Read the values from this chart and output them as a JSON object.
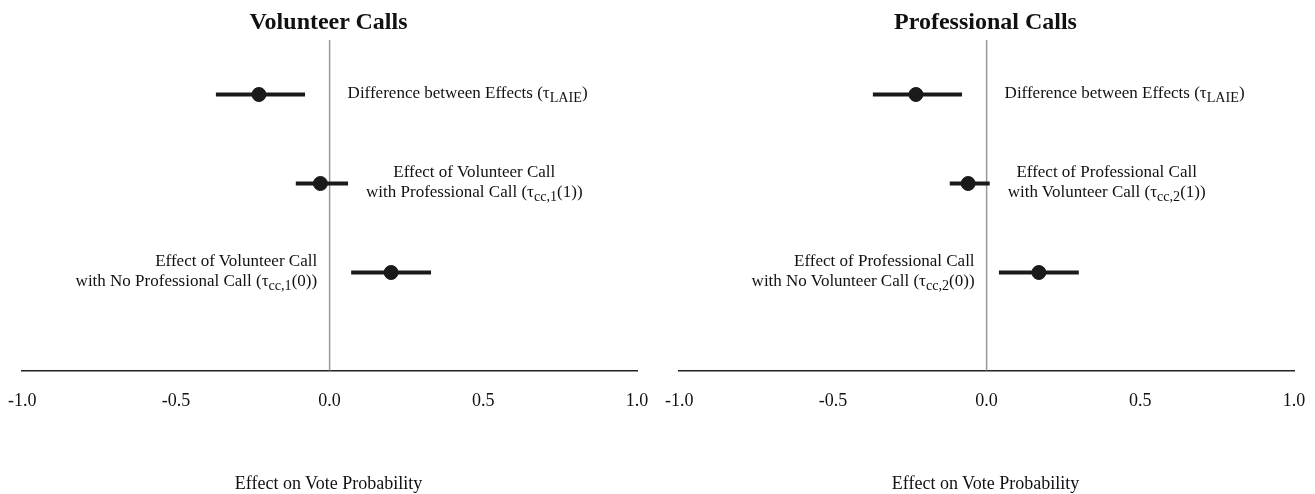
{
  "chart_data": [
    {
      "type": "scatter",
      "title": "Volunteer Calls",
      "xlabel": "Effect on Vote Probability",
      "orientation": "horizontal",
      "categories": [
        null,
        null,
        null
      ],
      "series": [
        {
          "color": "#1a1a1a",
          "values": [
            -0.23,
            -0.03,
            0.2
          ],
          "errors": [
            [
              -0.37,
              -0.08
            ],
            [
              -0.11,
              0.06
            ],
            [
              0.07,
              0.33
            ]
          ]
        }
      ],
      "xlim": [
        -1,
        1
      ],
      "xticks": [
        {
          "value": -1,
          "label": "-1.0"
        },
        {
          "value": -0.5,
          "label": "-0.5"
        },
        {
          "value": 0,
          "label": "0.0"
        },
        {
          "value": 0.5,
          "label": "0.5"
        },
        {
          "value": 1,
          "label": "1.0"
        }
      ],
      "ref_lines": [
        {
          "axis": "x",
          "value": 0,
          "color": "#999999"
        }
      ],
      "annotations": [
        "Difference between Effects (τ$_{LAIE}$)",
        "Effect of Volunteer Call\nwith Professional Call (τ$_{cc,1}$(1))",
        "Effect of Volunteer Call\nwith No Professional Call (τ$_{cc,1}$(0))"
      ],
      "marker": "circle",
      "grid": false,
      "legend": false,
      "tick_labels": "x"
    },
    {
      "type": "scatter",
      "title": "Professional Calls",
      "xlabel": "Effect on Vote Probability",
      "orientation": "horizontal",
      "categories": [
        null,
        null,
        null
      ],
      "series": [
        {
          "color": "#1a1a1a",
          "values": [
            -0.23,
            -0.06,
            0.17
          ],
          "errors": [
            [
              -0.37,
              -0.08
            ],
            [
              -0.12,
              0.01
            ],
            [
              0.04,
              0.3
            ]
          ]
        }
      ],
      "xlim": [
        -1,
        1
      ],
      "xticks": [
        {
          "value": -1,
          "label": "-1.0"
        },
        {
          "value": -0.5,
          "label": "-0.5"
        },
        {
          "value": 0,
          "label": "0.0"
        },
        {
          "value": 0.5,
          "label": "0.5"
        },
        {
          "value": 1,
          "label": "1.0"
        }
      ],
      "ref_lines": [
        {
          "axis": "x",
          "value": 0,
          "color": "#999999"
        }
      ],
      "annotations": [
        "Difference between Effects (τ$_{LAIE}$)",
        "Effect of Professional Call\nwith Volunteer Call (τ$_{cc,2}$(1))",
        "Effect of Professional Call\nwith No Volunteer Call (τ$_{cc,2}$(0))"
      ],
      "marker": "circle",
      "grid": false,
      "legend": false,
      "tick_labels": "x"
    }
  ]
}
